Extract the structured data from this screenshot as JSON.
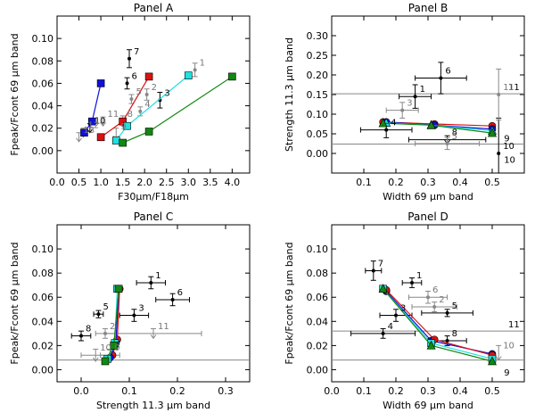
{
  "chart_data": [
    {
      "type": "scatter",
      "panel": "A",
      "title": "Panel A",
      "xlabel": "F30μm/F18μm",
      "ylabel": "Fpeak/Fcont 69 μm band",
      "xlim": [
        0.0,
        4.4
      ],
      "ylim": [
        -0.02,
        0.12
      ],
      "xticks": [
        "0.0",
        "0.5",
        "1.0",
        "1.5",
        "2.0",
        "2.5",
        "3.0",
        "3.5",
        "4.0"
      ],
      "xtick_values": [
        0.0,
        0.5,
        1.0,
        1.5,
        2.0,
        2.5,
        3.0,
        3.5,
        4.0
      ],
      "yticks": [
        "0.00",
        "0.02",
        "0.04",
        "0.06",
        "0.08",
        "0.10"
      ],
      "ytick_values": [
        0.0,
        0.02,
        0.04,
        0.06,
        0.08,
        0.1
      ],
      "hlines": [],
      "vlines": [],
      "points": [
        {
          "id": "1",
          "x": 3.15,
          "y": 0.072,
          "xerr": 0,
          "yerr": 0.006,
          "upper": false,
          "color": "#888888"
        },
        {
          "id": "2",
          "x": 2.05,
          "y": 0.05,
          "xerr": 0,
          "yerr": 0.005,
          "upper": false,
          "color": "#888888"
        },
        {
          "id": "3",
          "x": 2.35,
          "y": 0.045,
          "xerr": 0,
          "yerr": 0.007,
          "upper": false,
          "color": "#000000"
        },
        {
          "id": "4",
          "x": 1.9,
          "y": 0.035,
          "xerr": 0,
          "yerr": 0.004,
          "upper": false,
          "color": "#888888"
        },
        {
          "id": "5",
          "x": 1.7,
          "y": 0.046,
          "xerr": 0,
          "yerr": 0.004,
          "upper": false,
          "color": "#888888"
        },
        {
          "id": "6",
          "x": 1.6,
          "y": 0.06,
          "xerr": 0,
          "yerr": 0.005,
          "upper": false,
          "color": "#000000"
        },
        {
          "id": "7",
          "x": 1.65,
          "y": 0.082,
          "xerr": 0,
          "yerr": 0.008,
          "upper": false,
          "color": "#000000"
        },
        {
          "id": "8",
          "x": 1.5,
          "y": 0.026,
          "xerr": 0,
          "yerr": 0.005,
          "upper": true,
          "color": "#888888"
        },
        {
          "id": "9",
          "x": 1.35,
          "y": 0.015,
          "xerr": 0,
          "yerr": 0.005,
          "upper": true,
          "color": "#888888"
        },
        {
          "id": "10",
          "x": 0.75,
          "y": 0.02,
          "xerr": 0,
          "yerr": 0.004,
          "upper": true,
          "color": "#000000"
        },
        {
          "id": "11",
          "x": 1.05,
          "y": 0.026,
          "xerr": 0,
          "yerr": 0.004,
          "upper": true,
          "color": "#888888"
        },
        {
          "id": "12",
          "x": 0.6,
          "y": 0.016,
          "xerr": 0,
          "yerr": 0.004,
          "upper": true,
          "color": "#888888"
        },
        {
          "id": "13",
          "x": 0.5,
          "y": 0.012,
          "xerr": 0,
          "yerr": 0.004,
          "upper": true,
          "color": "#888888"
        }
      ],
      "series": [
        {
          "name": "blue",
          "color": "#1010dd",
          "marker": "square",
          "x": [
            0.62,
            0.8,
            1.0
          ],
          "y": [
            0.016,
            0.026,
            0.06
          ]
        },
        {
          "name": "red",
          "color": "#dd1010",
          "marker": "square",
          "x": [
            1.0,
            1.5,
            2.1
          ],
          "y": [
            0.012,
            0.026,
            0.066
          ]
        },
        {
          "name": "cyan",
          "color": "#22e0e0",
          "marker": "square",
          "x": [
            1.35,
            1.6,
            3.0
          ],
          "y": [
            0.009,
            0.022,
            0.067
          ]
        },
        {
          "name": "green",
          "color": "#118811",
          "marker": "square",
          "x": [
            1.5,
            2.1,
            4.0
          ],
          "y": [
            0.007,
            0.017,
            0.066
          ]
        }
      ]
    },
    {
      "type": "scatter",
      "panel": "B",
      "title": "Panel B",
      "xlabel": "Width 69 μm band",
      "ylabel": "Strength 11.3 μm band",
      "xlim": [
        0.0,
        0.6
      ],
      "ylim": [
        -0.05,
        0.35
      ],
      "xticks": [
        "0.1",
        "0.2",
        "0.3",
        "0.4",
        "0.5"
      ],
      "xtick_values": [
        0.1,
        0.2,
        0.3,
        0.4,
        0.5
      ],
      "yticks": [
        "0.00",
        "0.05",
        "0.10",
        "0.15",
        "0.20",
        "0.25",
        "0.30"
      ],
      "ytick_values": [
        0.0,
        0.05,
        0.1,
        0.15,
        0.2,
        0.25,
        0.3
      ],
      "hlines": [
        {
          "y": 0.152,
          "label": "11"
        },
        {
          "y": 0.024,
          "label": ""
        }
      ],
      "vlines": [],
      "points": [
        {
          "id": "1",
          "x": 0.26,
          "y": 0.145,
          "xerr": 0.05,
          "yerr": 0.03,
          "upper": false,
          "color": "#000000"
        },
        {
          "id": "6",
          "x": 0.34,
          "y": 0.192,
          "xerr": 0.08,
          "yerr": 0.04,
          "upper": false,
          "color": "#000000"
        },
        {
          "id": "3",
          "x": 0.22,
          "y": 0.11,
          "xerr": 0.05,
          "yerr": 0.02,
          "upper": false,
          "color": "#888888"
        },
        {
          "id": "4",
          "x": 0.17,
          "y": 0.06,
          "xerr": 0.08,
          "yerr": 0.02,
          "upper": false,
          "color": "#000000"
        },
        {
          "id": "8",
          "x": 0.36,
          "y": 0.035,
          "xerr": 0.12,
          "yerr": 0.01,
          "upper": true,
          "color": "#000000"
        },
        {
          "id": "5",
          "x": 0.36,
          "y": 0.025,
          "xerr": 0.1,
          "yerr": 0.015,
          "upper": false,
          "color": "#888888"
        },
        {
          "id": "10",
          "x": 0.52,
          "y": 0.0,
          "xerr": 0,
          "yerr": 0.09,
          "upper": false,
          "color": "#000000"
        },
        {
          "id": "11b",
          "x": 0.52,
          "y": 0.15,
          "xerr": 0,
          "yerr": 0.065,
          "upper": false,
          "color": "#888888"
        }
      ],
      "series": [
        {
          "name": "red",
          "color": "#dd1010",
          "marker": "circle",
          "x": [
            0.16,
            0.32,
            0.5
          ],
          "y": [
            0.08,
            0.075,
            0.07
          ]
        },
        {
          "name": "blue",
          "color": "#1010dd",
          "marker": "circle",
          "x": [
            0.17,
            0.32,
            0.5
          ],
          "y": [
            0.08,
            0.072,
            0.062
          ]
        },
        {
          "name": "cyan",
          "color": "#22e0e0",
          "marker": "triangle",
          "x": [
            0.17,
            0.31,
            0.5
          ],
          "y": [
            0.078,
            0.072,
            0.058
          ]
        },
        {
          "name": "green",
          "color": "#118811",
          "marker": "triangle",
          "x": [
            0.16,
            0.31,
            0.5
          ],
          "y": [
            0.077,
            0.072,
            0.052
          ]
        }
      ],
      "extra_labels": [
        {
          "id": "9",
          "x": 0.52,
          "y": 0.04
        },
        {
          "id": "10",
          "x": 0.52,
          "y": -0.015
        }
      ]
    },
    {
      "type": "scatter",
      "panel": "C",
      "title": "Panel C",
      "xlabel": "Strength 11.3 μm band",
      "ylabel": "Fpeak/Fcont 69 μm band",
      "xlim": [
        -0.05,
        0.35
      ],
      "ylim": [
        -0.01,
        0.12
      ],
      "xticks": [
        "0.0",
        "0.1",
        "0.2",
        "0.3"
      ],
      "xtick_values": [
        0.0,
        0.1,
        0.2,
        0.3
      ],
      "yticks": [
        "0.00",
        "0.02",
        "0.04",
        "0.06",
        "0.08",
        "0.10"
      ],
      "ytick_values": [
        0.0,
        0.02,
        0.04,
        0.06,
        0.08,
        0.1
      ],
      "hlines": [
        {
          "y": 0.008,
          "label": ""
        }
      ],
      "vlines": [],
      "points": [
        {
          "id": "1",
          "x": 0.145,
          "y": 0.072,
          "xerr": 0.03,
          "yerr": 0.005,
          "upper": false,
          "color": "#000000"
        },
        {
          "id": "6",
          "x": 0.19,
          "y": 0.058,
          "xerr": 0.035,
          "yerr": 0.005,
          "upper": false,
          "color": "#000000"
        },
        {
          "id": "3",
          "x": 0.11,
          "y": 0.045,
          "xerr": 0.03,
          "yerr": 0.005,
          "upper": false,
          "color": "#000000"
        },
        {
          "id": "5",
          "x": 0.036,
          "y": 0.046,
          "xerr": 0.01,
          "yerr": 0.003,
          "upper": false,
          "color": "#000000"
        },
        {
          "id": "11",
          "x": 0.15,
          "y": 0.03,
          "xerr": 0.1,
          "yerr": 0.004,
          "upper": true,
          "color": "#888888"
        },
        {
          "id": "8",
          "x": 0.0,
          "y": 0.028,
          "xerr": 0.02,
          "yerr": 0.004,
          "upper": false,
          "color": "#000000"
        },
        {
          "id": "2",
          "x": 0.05,
          "y": 0.03,
          "xerr": 0.02,
          "yerr": 0.004,
          "upper": false,
          "color": "#888888"
        },
        {
          "id": "10",
          "x": 0.03,
          "y": 0.012,
          "xerr": 0.03,
          "yerr": 0.005,
          "upper": true,
          "color": "#888888"
        },
        {
          "id": "9",
          "x": 0.06,
          "y": 0.012,
          "xerr": 0.02,
          "yerr": 0.005,
          "upper": true,
          "color": "#888888"
        }
      ],
      "series": [
        {
          "name": "red",
          "color": "#dd1010",
          "marker": "circle",
          "x": [
            0.065,
            0.075,
            0.08
          ],
          "y": [
            0.012,
            0.025,
            0.067
          ]
        },
        {
          "name": "blue",
          "color": "#1010dd",
          "marker": "circle",
          "x": [
            0.06,
            0.072,
            0.078
          ],
          "y": [
            0.01,
            0.022,
            0.067
          ]
        },
        {
          "name": "cyan",
          "color": "#22e0e0",
          "marker": "square",
          "x": [
            0.055,
            0.07,
            0.075
          ],
          "y": [
            0.009,
            0.022,
            0.067
          ]
        },
        {
          "name": "green",
          "color": "#118811",
          "marker": "square",
          "x": [
            0.05,
            0.068,
            0.078
          ],
          "y": [
            0.007,
            0.02,
            0.067
          ]
        }
      ]
    },
    {
      "type": "scatter",
      "panel": "D",
      "title": "Panel D",
      "xlabel": "Width 69 μm band",
      "ylabel": "Fpeak/Fcont 69 μm band",
      "xlim": [
        0.0,
        0.6
      ],
      "ylim": [
        -0.01,
        0.12
      ],
      "xticks": [
        "0.0",
        "0.1",
        "0.2",
        "0.3",
        "0.4",
        "0.5"
      ],
      "xtick_values": [
        0.0,
        0.1,
        0.2,
        0.3,
        0.4,
        0.5
      ],
      "yticks": [
        "0.00",
        "0.02",
        "0.04",
        "0.06",
        "0.08",
        "0.10"
      ],
      "ytick_values": [
        0.0,
        0.02,
        0.04,
        0.06,
        0.08,
        0.1
      ],
      "hlines": [
        {
          "y": 0.032,
          "label": "11"
        },
        {
          "y": 0.008,
          "label": ""
        }
      ],
      "vlines": [],
      "points": [
        {
          "id": "7",
          "x": 0.13,
          "y": 0.082,
          "xerr": 0.025,
          "yerr": 0.008,
          "upper": false,
          "color": "#000000"
        },
        {
          "id": "1",
          "x": 0.25,
          "y": 0.072,
          "xerr": 0.03,
          "yerr": 0.004,
          "upper": false,
          "color": "#000000"
        },
        {
          "id": "6",
          "x": 0.3,
          "y": 0.06,
          "xerr": 0.06,
          "yerr": 0.005,
          "upper": false,
          "color": "#888888"
        },
        {
          "id": "2",
          "x": 0.32,
          "y": 0.052,
          "xerr": 0.07,
          "yerr": 0.004,
          "upper": false,
          "color": "#888888"
        },
        {
          "id": "5",
          "x": 0.36,
          "y": 0.047,
          "xerr": 0.08,
          "yerr": 0.003,
          "upper": false,
          "color": "#000000"
        },
        {
          "id": "3",
          "x": 0.2,
          "y": 0.045,
          "xerr": 0.05,
          "yerr": 0.005,
          "upper": false,
          "color": "#000000"
        },
        {
          "id": "4",
          "x": 0.16,
          "y": 0.03,
          "xerr": 0.1,
          "yerr": 0.004,
          "upper": false,
          "color": "#000000"
        },
        {
          "id": "8",
          "x": 0.36,
          "y": 0.024,
          "xerr": 0.06,
          "yerr": 0.004,
          "upper": false,
          "color": "#000000"
        },
        {
          "id": "10",
          "x": 0.52,
          "y": 0.014,
          "xerr": 0,
          "yerr": 0.006,
          "upper": true,
          "color": "#888888"
        }
      ],
      "series": [
        {
          "name": "blue",
          "color": "#1010dd",
          "marker": "circle",
          "x": [
            0.17,
            0.31,
            0.5
          ],
          "y": [
            0.065,
            0.024,
            0.013
          ]
        },
        {
          "name": "red",
          "color": "#dd1010",
          "marker": "circle",
          "x": [
            0.17,
            0.32,
            0.5
          ],
          "y": [
            0.066,
            0.025,
            0.012
          ]
        },
        {
          "name": "cyan",
          "color": "#22e0e0",
          "marker": "square",
          "x": [
            0.16,
            0.31,
            0.5
          ],
          "y": [
            0.067,
            0.022,
            0.009
          ]
        },
        {
          "name": "green",
          "color": "#118811",
          "marker": "triangle",
          "x": [
            0.16,
            0.31,
            0.5
          ],
          "y": [
            0.067,
            0.02,
            0.007
          ]
        }
      ],
      "extra_labels": [
        {
          "id": "9",
          "x": 0.52,
          "y": -0.002
        }
      ]
    }
  ]
}
